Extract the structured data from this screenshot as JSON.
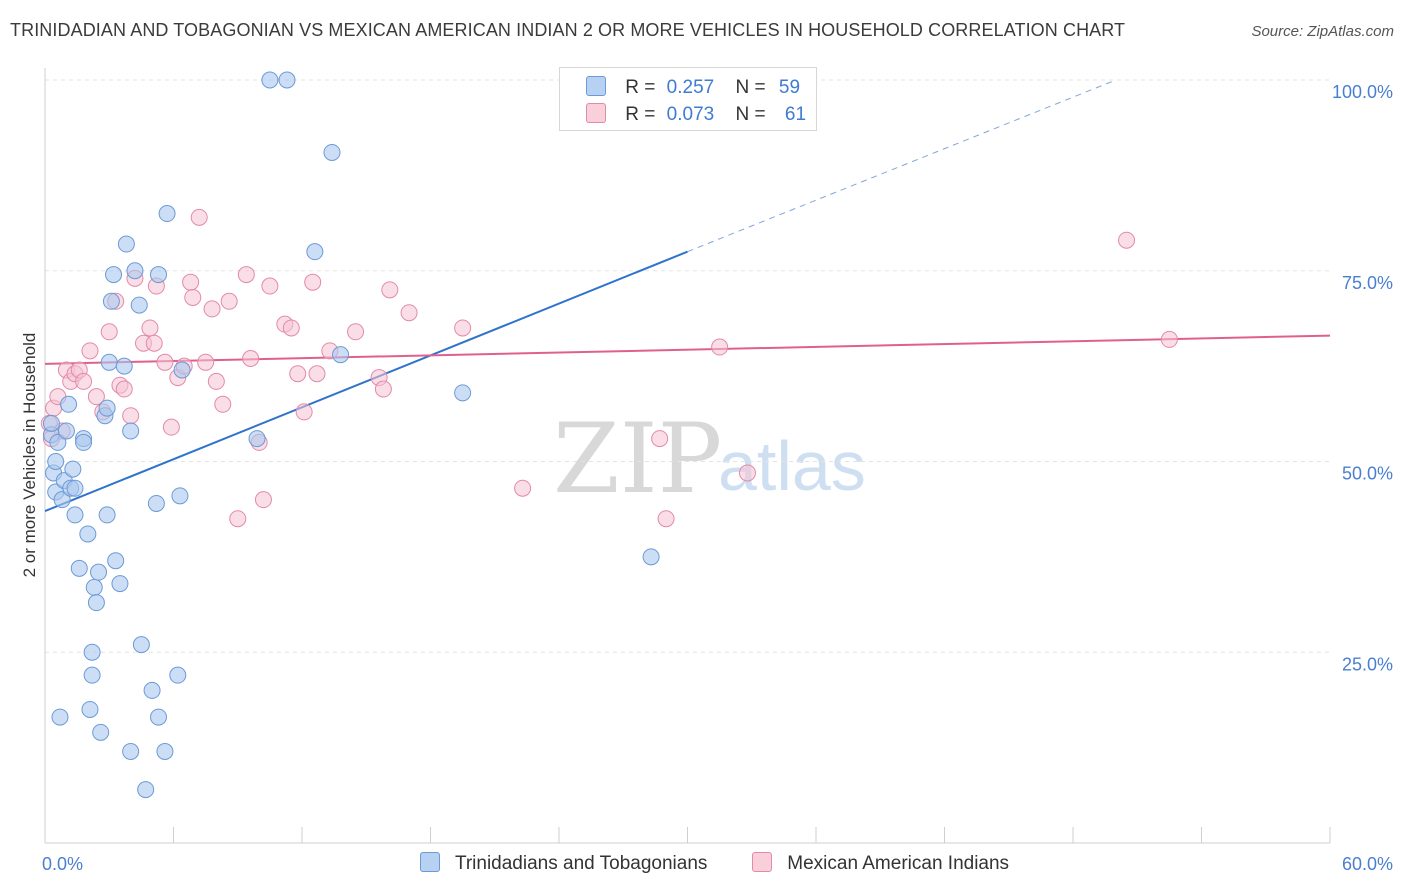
{
  "header": {
    "title": "TRINIDADIAN AND TOBAGONIAN VS MEXICAN AMERICAN INDIAN 2 OR MORE VEHICLES IN HOUSEHOLD CORRELATION CHART",
    "source": "Source: ZipAtlas.com"
  },
  "legend": {
    "rows": [
      {
        "r_label": "R =",
        "r_value": "0.257",
        "n_label": "N =",
        "n_value": "59"
      },
      {
        "r_label": "R =",
        "r_value": "0.073",
        "n_label": "N =",
        "n_value": "61"
      }
    ]
  },
  "bottom_legend": {
    "items": [
      "Trinidadians and Tobagonians",
      "Mexican American Indians"
    ]
  },
  "watermark": {
    "zip": "ZIP",
    "atlas": "atlas"
  },
  "colors": {
    "blue_fill": "#aac8ee",
    "blue_stroke": "#6c9ad6",
    "blue_line": "#2f73cc",
    "pink_fill": "#f6c3d3",
    "pink_stroke": "#e38aa8",
    "pink_line": "#e0608c",
    "tick_text": "#4a7fd0",
    "grid": "#e3e3e3"
  },
  "chart_data": {
    "type": "scatter",
    "title": "TRINIDADIAN AND TOBAGONIAN VS MEXICAN AMERICAN INDIAN 2 OR MORE VEHICLES IN HOUSEHOLD CORRELATION CHART",
    "xlabel": "",
    "ylabel": "2 or more Vehicles in Household",
    "xlim": [
      0,
      60
    ],
    "ylim": [
      0,
      100
    ],
    "x_tick_labels": [
      "0.0%",
      "60.0%"
    ],
    "y_ticks": [
      25,
      50,
      75,
      100
    ],
    "y_tick_labels": [
      "25.0%",
      "50.0%",
      "75.0%",
      "100.0%"
    ],
    "grid": true,
    "legend_position": "top-center",
    "series": [
      {
        "name": "Trinidadians and Tobagonians",
        "r": 0.257,
        "n": 59,
        "trend": {
          "x": [
            0,
            30
          ],
          "y": [
            43.5,
            77.5
          ],
          "dashed_extension_to": [
            50,
            100
          ]
        },
        "points": [
          [
            0.3,
            53.5
          ],
          [
            0.3,
            55.0
          ],
          [
            0.4,
            48.5
          ],
          [
            0.5,
            50.0
          ],
          [
            0.5,
            46.0
          ],
          [
            0.6,
            52.5
          ],
          [
            0.8,
            45.0
          ],
          [
            0.9,
            47.5
          ],
          [
            1.0,
            54.0
          ],
          [
            1.1,
            57.5
          ],
          [
            1.2,
            46.5
          ],
          [
            1.3,
            49.0
          ],
          [
            1.4,
            46.5
          ],
          [
            1.4,
            43.0
          ],
          [
            1.6,
            36.0
          ],
          [
            1.8,
            53.0
          ],
          [
            1.8,
            52.5
          ],
          [
            2.0,
            40.5
          ],
          [
            2.1,
            17.5
          ],
          [
            2.2,
            22.0
          ],
          [
            2.2,
            25.0
          ],
          [
            2.3,
            33.5
          ],
          [
            2.4,
            31.5
          ],
          [
            2.5,
            35.5
          ],
          [
            2.6,
            14.5
          ],
          [
            2.8,
            56.0
          ],
          [
            2.9,
            57.0
          ],
          [
            2.9,
            43.0
          ],
          [
            3.0,
            63.0
          ],
          [
            3.1,
            71.0
          ],
          [
            3.2,
            74.5
          ],
          [
            3.3,
            37.0
          ],
          [
            3.5,
            34.0
          ],
          [
            3.7,
            62.5
          ],
          [
            3.8,
            78.5
          ],
          [
            4.0,
            54.0
          ],
          [
            4.0,
            12.0
          ],
          [
            4.2,
            75.0
          ],
          [
            4.4,
            70.5
          ],
          [
            4.5,
            26.0
          ],
          [
            4.7,
            7.0
          ],
          [
            5.0,
            20.0
          ],
          [
            5.2,
            44.5
          ],
          [
            5.3,
            16.5
          ],
          [
            5.3,
            74.5
          ],
          [
            5.6,
            12.0
          ],
          [
            5.7,
            82.5
          ],
          [
            6.2,
            22.0
          ],
          [
            6.3,
            45.5
          ],
          [
            6.4,
            62.0
          ],
          [
            9.9,
            53.0
          ],
          [
            10.5,
            100.0
          ],
          [
            11.3,
            100.0
          ],
          [
            12.6,
            77.5
          ],
          [
            13.4,
            90.5
          ],
          [
            13.8,
            64.0
          ],
          [
            19.5,
            59.0
          ],
          [
            28.3,
            37.5
          ],
          [
            0.7,
            16.5
          ]
        ]
      },
      {
        "name": "Mexican American Indians",
        "r": 0.073,
        "n": 61,
        "trend": {
          "x": [
            0,
            60
          ],
          "y": [
            62.8,
            66.5
          ]
        },
        "points": [
          [
            0.2,
            55.0
          ],
          [
            0.4,
            57.0
          ],
          [
            0.6,
            58.5
          ],
          [
            0.8,
            54.0
          ],
          [
            1.0,
            62.0
          ],
          [
            1.2,
            60.5
          ],
          [
            1.4,
            61.5
          ],
          [
            1.6,
            62.0
          ],
          [
            1.8,
            60.5
          ],
          [
            2.1,
            64.5
          ],
          [
            2.4,
            58.5
          ],
          [
            2.7,
            56.5
          ],
          [
            3.0,
            67.0
          ],
          [
            3.3,
            71.0
          ],
          [
            3.5,
            60.0
          ],
          [
            3.7,
            59.5
          ],
          [
            4.0,
            56.0
          ],
          [
            4.2,
            74.0
          ],
          [
            4.6,
            65.5
          ],
          [
            4.9,
            67.5
          ],
          [
            5.1,
            65.5
          ],
          [
            5.2,
            73.0
          ],
          [
            5.6,
            63.0
          ],
          [
            5.9,
            54.5
          ],
          [
            6.2,
            61.0
          ],
          [
            6.5,
            62.5
          ],
          [
            6.8,
            73.5
          ],
          [
            6.9,
            71.5
          ],
          [
            7.2,
            82.0
          ],
          [
            7.5,
            63.0
          ],
          [
            7.8,
            70.0
          ],
          [
            8.0,
            60.5
          ],
          [
            8.3,
            57.5
          ],
          [
            8.6,
            71.0
          ],
          [
            9.0,
            42.5
          ],
          [
            9.4,
            74.5
          ],
          [
            9.6,
            63.5
          ],
          [
            10.0,
            52.5
          ],
          [
            10.2,
            45.0
          ],
          [
            10.5,
            73.0
          ],
          [
            11.2,
            68.0
          ],
          [
            11.5,
            67.5
          ],
          [
            11.8,
            61.5
          ],
          [
            12.1,
            56.5
          ],
          [
            12.5,
            73.5
          ],
          [
            12.7,
            61.5
          ],
          [
            13.3,
            64.5
          ],
          [
            14.5,
            67.0
          ],
          [
            15.6,
            61.0
          ],
          [
            15.8,
            59.5
          ],
          [
            16.1,
            72.5
          ],
          [
            17.0,
            69.5
          ],
          [
            19.5,
            67.5
          ],
          [
            22.3,
            46.5
          ],
          [
            28.7,
            53.0
          ],
          [
            29.0,
            42.5
          ],
          [
            31.5,
            65.0
          ],
          [
            32.8,
            48.5
          ],
          [
            50.5,
            79.0
          ],
          [
            52.5,
            66.0
          ],
          [
            0.3,
            53.0
          ]
        ]
      }
    ]
  }
}
